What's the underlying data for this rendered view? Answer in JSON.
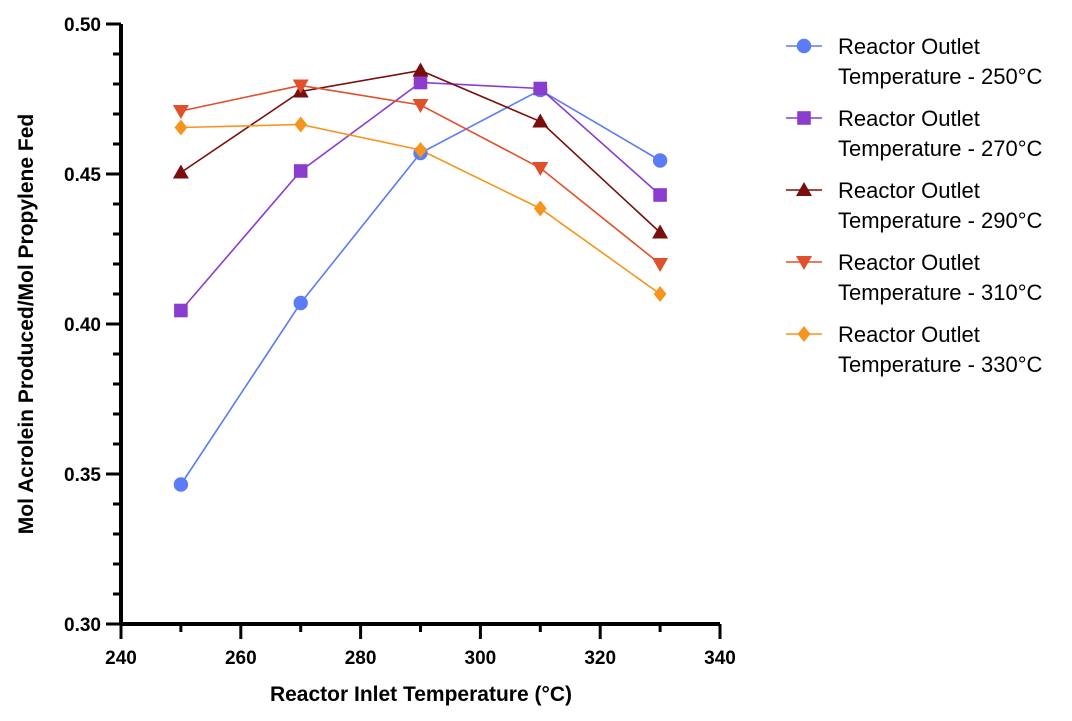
{
  "chart_data": {
    "type": "line",
    "xlabel": "Reactor Inlet Temperature (°C)",
    "ylabel": "Mol Acrolein Produced/Mol Propylene Fed",
    "xlim": [
      240,
      340
    ],
    "ylim": [
      0.3,
      0.5
    ],
    "x_ticks": [
      "240",
      "260",
      "280",
      "300",
      "320",
      "340"
    ],
    "y_ticks": [
      "0.30",
      "0.35",
      "0.40",
      "0.45",
      "0.50"
    ],
    "x": [
      250,
      270,
      290,
      310,
      330
    ],
    "legend_position": "right",
    "grid": false,
    "series": [
      {
        "name_line1": "Reactor Outlet",
        "name_line2": "Temperature - 250°C",
        "color": "#5b7cf5",
        "marker": "circle",
        "values": [
          0.3465,
          0.407,
          0.457,
          0.478,
          0.4545
        ]
      },
      {
        "name_line1": "Reactor Outlet",
        "name_line2": "Temperature - 270°C",
        "color": "#8a3ccf",
        "marker": "square",
        "values": [
          0.4045,
          0.451,
          0.4805,
          0.4785,
          0.443
        ]
      },
      {
        "name_line1": "Reactor Outlet",
        "name_line2": "Temperature - 290°C",
        "color": "#7a0d0d",
        "marker": "triangle-up",
        "values": [
          0.4505,
          0.4775,
          0.4845,
          0.4675,
          0.4305
        ]
      },
      {
        "name_line1": "Reactor Outlet",
        "name_line2": "Temperature - 310°C",
        "color": "#e0502b",
        "marker": "triangle-down",
        "values": [
          0.471,
          0.4795,
          0.473,
          0.452,
          0.42
        ]
      },
      {
        "name_line1": "Reactor Outlet",
        "name_line2": "Temperature - 330°C",
        "color": "#f7941d",
        "marker": "diamond",
        "values": [
          0.4655,
          0.4665,
          0.458,
          0.4385,
          0.41
        ]
      }
    ]
  }
}
